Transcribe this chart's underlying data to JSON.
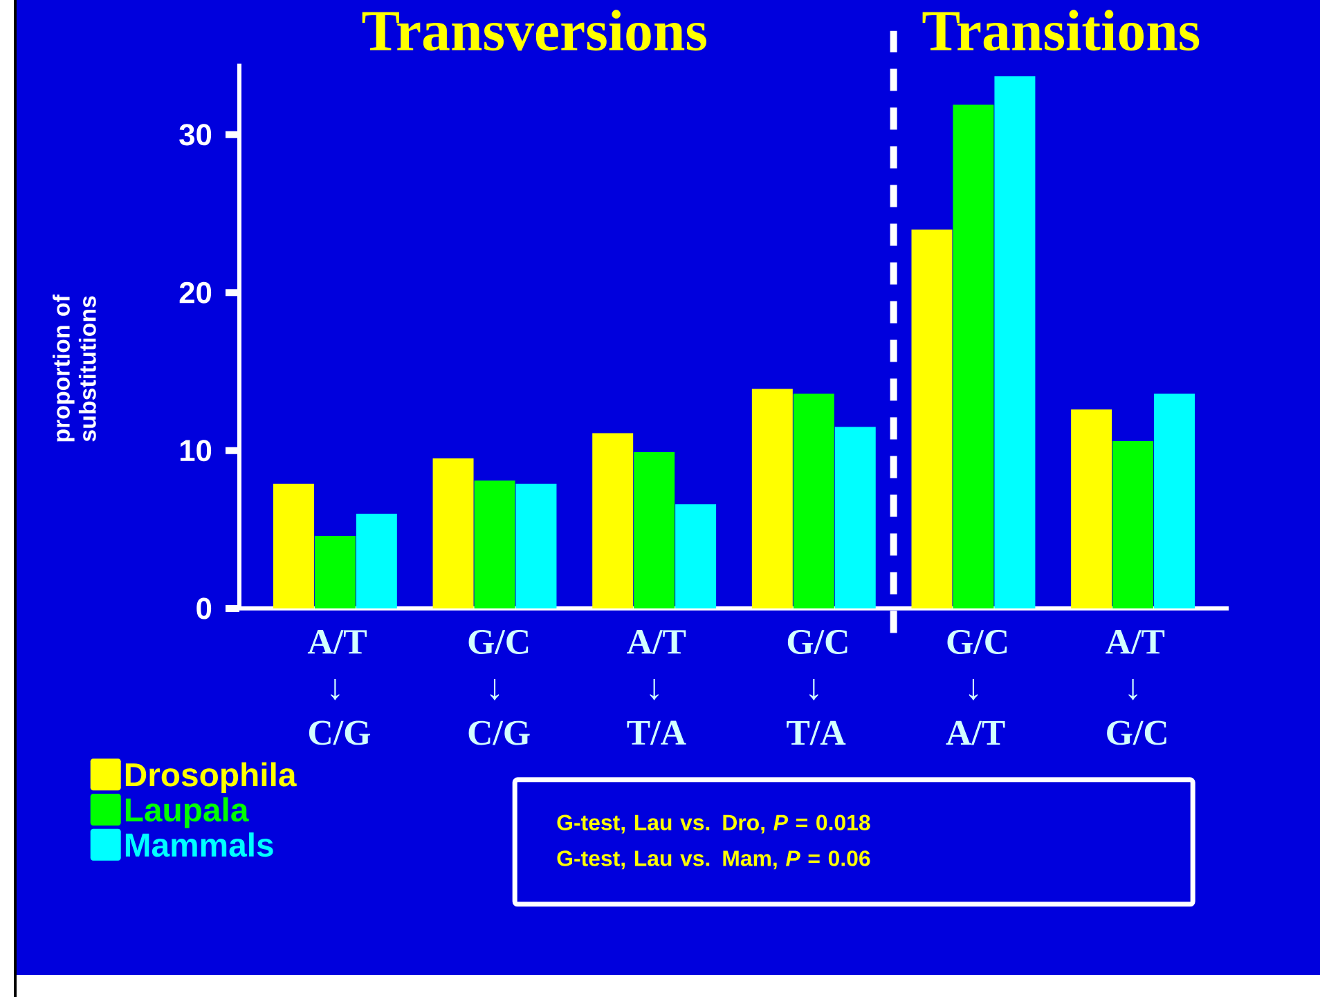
{
  "chart_data": {
    "type": "bar",
    "ylabel": "proportion of substitutions",
    "categories": [
      "A/T ↓ C/G",
      "G/C ↓ C/G",
      "A/T ↓ T/A",
      "G/C ↓ T/A",
      "G/C ↓ A/T",
      "A/T ↓ G/C"
    ],
    "series": [
      {
        "name": "Drosophila",
        "color": "#ffff00",
        "values": [
          7.9,
          9.5,
          11.1,
          13.9,
          24.0,
          12.6
        ]
      },
      {
        "name": "Laupala",
        "color": "#00ff00",
        "values": [
          4.6,
          8.1,
          9.9,
          13.6,
          31.9,
          10.6
        ]
      },
      {
        "name": "Mammals",
        "color": "#00ffff",
        "values": [
          6.0,
          7.9,
          6.6,
          11.5,
          33.7,
          13.6
        ]
      }
    ],
    "ylim": [
      0,
      34.5
    ],
    "yticks": [
      0,
      10,
      20,
      30
    ],
    "annotations": [
      "Transversions",
      "Transitions",
      "G-test, Lau vs. Dro, *P* = 0.018",
      "G-test, Lau vs. Mam, *P* = 0.06"
    ],
    "legend": "bottom left",
    "grid": false
  }
}
